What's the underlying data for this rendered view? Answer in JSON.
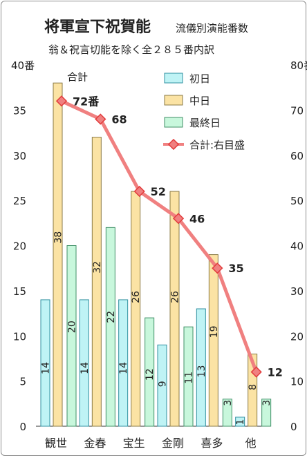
{
  "chart_data": {
    "type": "bar",
    "title": "将軍宣下祝賀能",
    "title_suffix": "流儀別演能番数",
    "subtitle": "翁＆祝言切能を除く全２８５番内訳",
    "categories": [
      "観世",
      "金春",
      "宝生",
      "金剛",
      "喜多",
      "他"
    ],
    "series": [
      {
        "name": "初日",
        "values": [
          14,
          14,
          14,
          9,
          13,
          1
        ],
        "color": "#bff3f5",
        "stroke": "#2f8fa0"
      },
      {
        "name": "中日",
        "values": [
          38,
          32,
          26,
          26,
          19,
          8
        ],
        "color": "#fbe3a4",
        "stroke": "#8a7a45"
      },
      {
        "name": "最終日",
        "values": [
          20,
          22,
          12,
          11,
          3,
          3
        ],
        "color": "#c8f7dc",
        "stroke": "#3f8f66"
      }
    ],
    "line_series": {
      "name": "合計:右目盛",
      "values": [
        72,
        68,
        52,
        46,
        35,
        12
      ],
      "labels": [
        "72番",
        "68",
        "52",
        "46",
        "35",
        "12"
      ],
      "annotation": "合計",
      "color": "#f08080",
      "marker_color": "#e23c3c"
    },
    "y_left": {
      "min": 0,
      "max": 40,
      "step": 5,
      "top_label": "40番"
    },
    "y_right": {
      "min": 0,
      "max": 80,
      "step": 10,
      "top_label": "80番"
    },
    "grid": false,
    "legend_position": "top-right"
  }
}
